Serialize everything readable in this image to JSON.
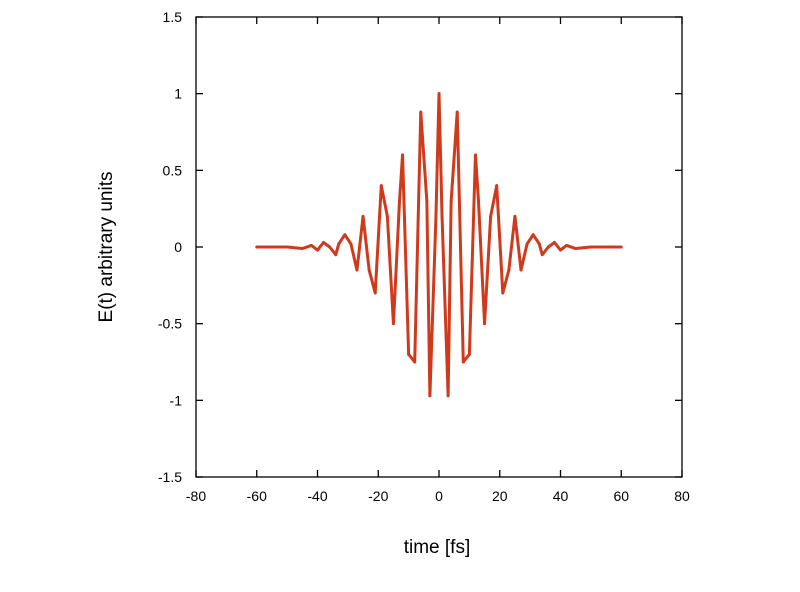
{
  "chart_data": {
    "type": "line",
    "title": "",
    "xlabel": "time [fs]",
    "ylabel": "E(t) arbitrary units",
    "xlim": [
      -80,
      80
    ],
    "ylim": [
      -1.5,
      1.5
    ],
    "xticks": [
      -80,
      -60,
      -40,
      -20,
      0,
      20,
      40,
      60,
      80
    ],
    "yticks": [
      -1.5,
      -1,
      -0.5,
      0,
      0.5,
      1,
      1.5
    ],
    "xtick_labels": [
      "-80",
      "-60",
      "-40",
      "-20",
      "0",
      "20",
      "40",
      "60",
      "80"
    ],
    "ytick_labels": [
      "-1.5",
      "-1",
      "-0.5",
      "0",
      "0.5",
      "1",
      "1.5"
    ],
    "grid": false,
    "legend": "none",
    "series": [
      {
        "color": "#d03a1c",
        "x": [
          -60,
          -50,
          -45,
          -42,
          -40,
          -38,
          -36,
          -34,
          -33,
          -31,
          -29,
          -27,
          -25,
          -23,
          -21,
          -19,
          -17,
          -15,
          -13,
          -12,
          -10,
          -8,
          -6,
          -4,
          -3,
          -1,
          0,
          1,
          3,
          4,
          6,
          8,
          10,
          12,
          13,
          15,
          17,
          19,
          21,
          23,
          25,
          27,
          29,
          31,
          33,
          34,
          36,
          38,
          40,
          42,
          45,
          50,
          60
        ],
        "y": [
          0,
          0,
          -0.01,
          0.01,
          -0.02,
          0.03,
          0,
          -0.05,
          0.02,
          0.08,
          0.02,
          -0.15,
          0.2,
          -0.15,
          -0.3,
          0.4,
          0.2,
          -0.5,
          0.3,
          0.6,
          -0.7,
          -0.75,
          0.88,
          0.3,
          -0.97,
          0.2,
          1.0,
          0.2,
          -0.97,
          0.3,
          0.88,
          -0.75,
          -0.7,
          0.6,
          0.3,
          -0.5,
          0.2,
          0.4,
          -0.3,
          -0.15,
          0.2,
          -0.15,
          0.02,
          0.08,
          0.02,
          -0.05,
          0,
          0.03,
          -0.02,
          0.01,
          -0.01,
          0,
          0
        ]
      }
    ]
  }
}
